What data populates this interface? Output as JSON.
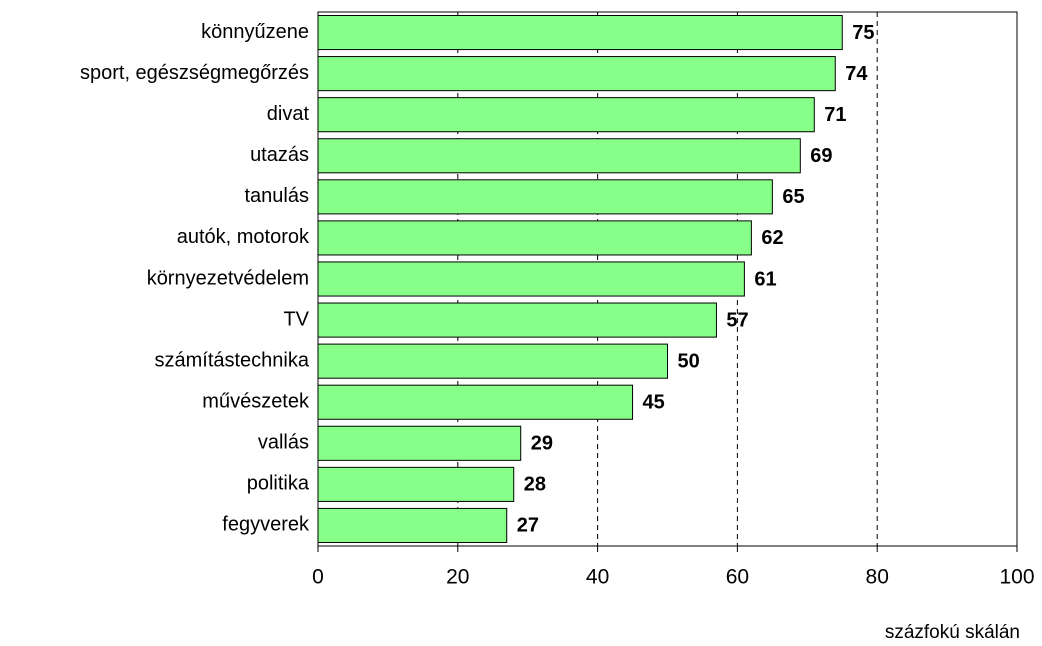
{
  "chart_data": {
    "type": "bar",
    "orientation": "horizontal",
    "categories": [
      "könnyűzene",
      "sport, egészségmegőrzés",
      "divat",
      "utazás",
      "tanulás",
      "autók, motorok",
      "környezetvédelem",
      "TV",
      "számítástechnika",
      "művészetek",
      "vallás",
      "politika",
      "fegyverek"
    ],
    "values": [
      75,
      74,
      71,
      69,
      65,
      62,
      61,
      57,
      50,
      45,
      29,
      28,
      27
    ],
    "color": "#88ff88",
    "xlim": [
      0,
      100
    ],
    "xticks": [
      0,
      20,
      40,
      60,
      80,
      100
    ],
    "xlabel": "százfokú skálán",
    "grid": true
  }
}
